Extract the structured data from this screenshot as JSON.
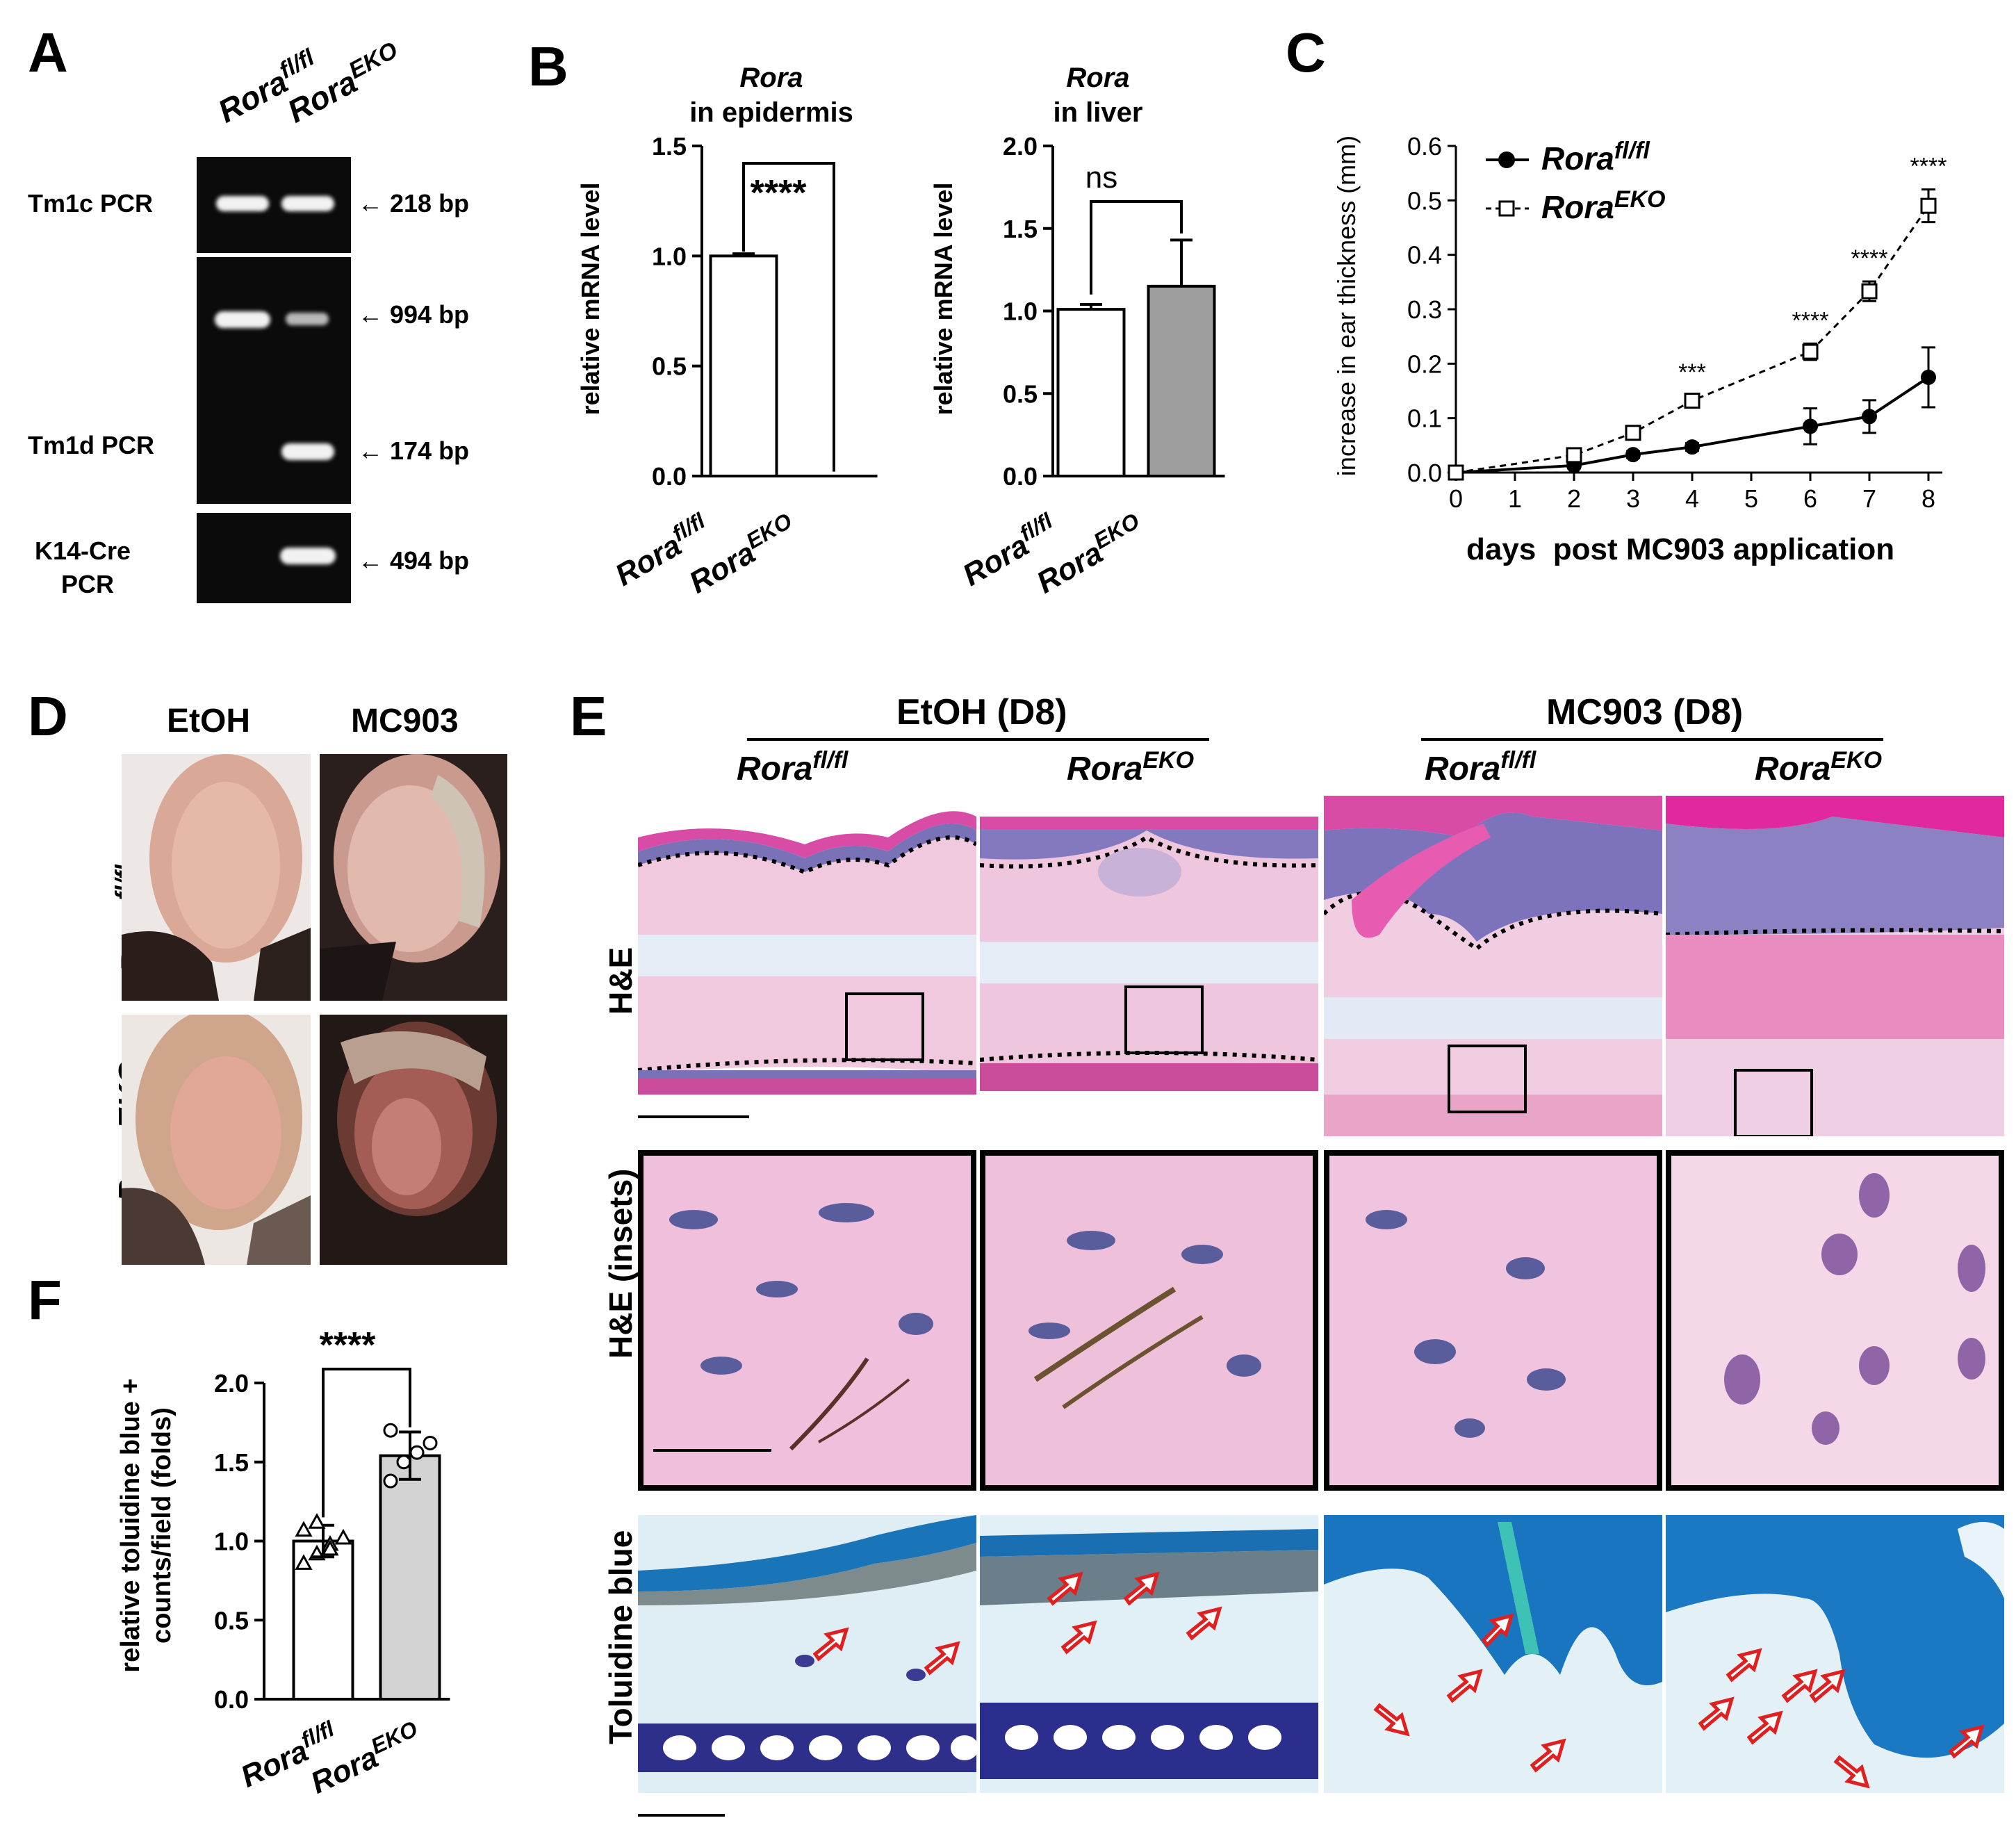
{
  "panels": {
    "A": "A",
    "B": "B",
    "C": "C",
    "D": "D",
    "E": "E",
    "F": "F"
  },
  "geno": {
    "fl_base": "Rora",
    "fl_sup": "fl/fl",
    "eko_base": "Rora",
    "eko_sup": "EKO"
  },
  "gel": {
    "rows": [
      "Tm1c PCR",
      "Tm1d PCR",
      "K14-Cre",
      "PCR"
    ],
    "sizes": [
      "← 218 bp",
      "← 994 bp",
      "← 174 bp",
      "← 494 bp"
    ]
  },
  "B": {
    "left_title_gene": "Rora",
    "left_title_sub": "in epidermis",
    "right_title_gene": "Rora",
    "right_title_sub": "in liver",
    "ylabel": "relative mRNA level",
    "left_sig": "****",
    "right_sig": "ns"
  },
  "chart_data": [
    {
      "type": "bar",
      "title": "Rora in epidermis",
      "ylabel": "relative mRNA level",
      "categories": [
        "Rora fl/fl",
        "Rora EKO"
      ],
      "values": [
        1.0,
        0.0
      ],
      "errors": [
        0.01,
        0.0
      ],
      "ylim": [
        0,
        1.5
      ],
      "yticks": [
        "0.0",
        "0.5",
        "1.0",
        "1.5"
      ],
      "significance": "****",
      "colors": [
        "#ffffff",
        "#ffffff"
      ]
    },
    {
      "type": "bar",
      "title": "Rora in liver",
      "ylabel": "relative mRNA level",
      "categories": [
        "Rora fl/fl",
        "Rora EKO"
      ],
      "values": [
        1.01,
        1.15
      ],
      "errors": [
        0.03,
        0.28
      ],
      "ylim": [
        0,
        2.0
      ],
      "yticks": [
        "0.0",
        "0.5",
        "1.0",
        "1.5",
        "2.0"
      ],
      "significance": "ns",
      "colors": [
        "#ffffff",
        "#9e9e9e"
      ]
    },
    {
      "type": "line",
      "ylabel": "increase in ear thickness (mm)",
      "xlabel": "days  post MC903 application",
      "x": [
        0,
        2,
        3,
        4,
        6,
        7,
        8
      ],
      "xticks": [
        "0",
        "1",
        "2",
        "3",
        "4",
        "5",
        "6",
        "7",
        "8"
      ],
      "yticks": [
        "0.0",
        "0.1",
        "0.2",
        "0.3",
        "0.4",
        "0.5",
        "0.6"
      ],
      "ylim": [
        0,
        0.6
      ],
      "xlim": [
        0,
        8
      ],
      "series": [
        {
          "name": "Rora fl/fl",
          "values": [
            0.0,
            0.013,
            0.033,
            0.047,
            0.085,
            0.103,
            0.175
          ],
          "errors": [
            0.003,
            0.005,
            0.006,
            0.007,
            0.033,
            0.03,
            0.055
          ]
        },
        {
          "name": "Rora EKO",
          "values": [
            0.0,
            0.032,
            0.073,
            0.132,
            0.222,
            0.333,
            0.49
          ],
          "errors": [
            0.003,
            0.006,
            0.007,
            0.01,
            0.015,
            0.018,
            0.03
          ]
        }
      ],
      "annotations": [
        {
          "x": 4,
          "text": "***"
        },
        {
          "x": 6,
          "text": "****"
        },
        {
          "x": 7,
          "text": "****"
        },
        {
          "x": 8,
          "text": "****"
        }
      ],
      "legend_position": "top-left"
    },
    {
      "type": "bar",
      "ylabel": "relative toluidine blue + counts/field (folds)",
      "ylabel_lines": [
        "relative toluidine blue +",
        "counts/field (folds)"
      ],
      "categories": [
        "Rora fl/fl",
        "Rora EKO"
      ],
      "values": [
        1.0,
        1.54
      ],
      "errors": [
        0.1,
        0.15
      ],
      "points": [
        [
          0.86,
          0.92,
          0.98,
          1.02,
          1.07,
          1.12,
          0.95
        ],
        [
          1.38,
          1.5,
          1.56,
          1.62,
          1.7
        ]
      ],
      "ylim": [
        0,
        2.0
      ],
      "yticks": [
        "0.0",
        "0.5",
        "1.0",
        "1.5",
        "2.0"
      ],
      "significance": "****",
      "colors": [
        "#ffffff",
        "#d3d3d3"
      ]
    }
  ],
  "D": {
    "col1": "EtOH",
    "col2": "MC903"
  },
  "E": {
    "group1": "EtOH (D8)",
    "group2": "MC903 (D8)",
    "row1": "H&E",
    "row2": "H&E (insets)",
    "row3": "Toluidine blue"
  }
}
